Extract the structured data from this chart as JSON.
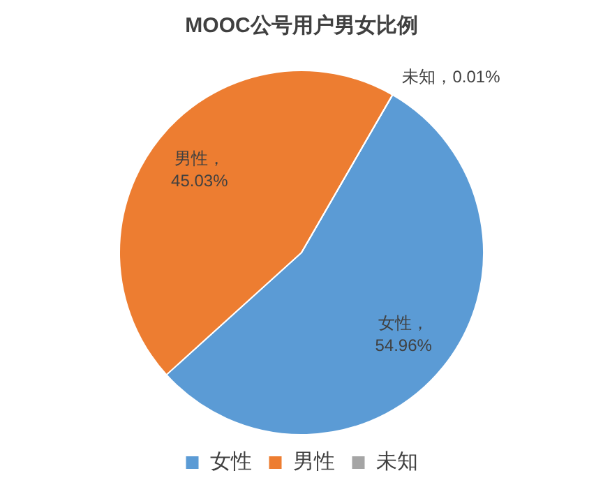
{
  "chart_data": {
    "type": "pie",
    "title": "MOOC公号用户男女比例",
    "categories": [
      "女性",
      "男性",
      "未知"
    ],
    "values": [
      54.96,
      45.03,
      0.01
    ],
    "colors": [
      "#5b9bd5",
      "#ed7d31",
      "#a5a5a5"
    ],
    "value_labels": [
      "女性，54.96%",
      "男性，45.03%",
      "未知，0.01%"
    ],
    "legend": "bottom"
  }
}
